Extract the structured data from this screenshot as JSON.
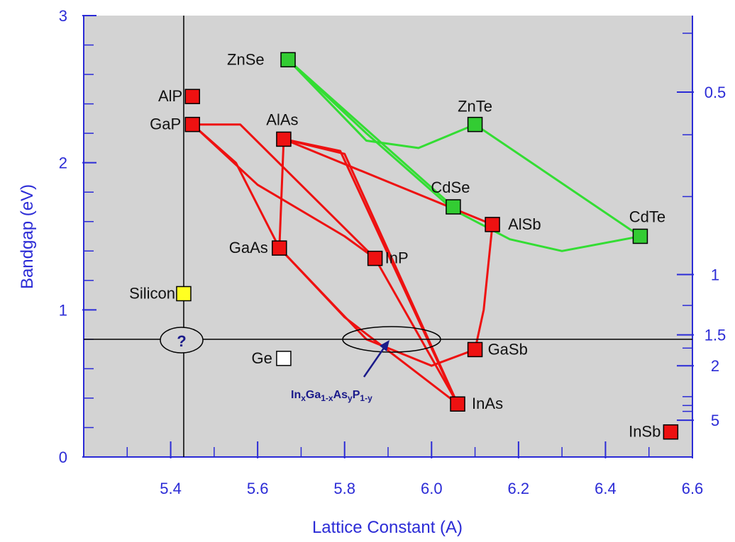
{
  "chart_data": {
    "type": "scatter",
    "title": "",
    "xlabel": "Lattice Constant  (A)",
    "ylabel": "Bandgap  (eV)",
    "xlim": [
      5.2,
      6.6
    ],
    "ylim": [
      0,
      3
    ],
    "x_ticks": [
      "5.4",
      "5.6",
      "5.8",
      "6.0",
      "6.2",
      "6.4",
      "6.6"
    ],
    "x_tick_values": [
      5.4,
      5.6,
      5.8,
      6.0,
      6.2,
      6.4,
      6.6
    ],
    "y_ticks": [
      "0",
      "1",
      "2",
      "3"
    ],
    "y_tick_values": [
      0,
      1,
      2,
      3
    ],
    "right_axis_label_title": "",
    "right_ticks": [
      {
        "label": "0.5",
        "bandgap": 2.48
      },
      {
        "label": "1",
        "bandgap": 1.24
      },
      {
        "label": "1.5",
        "bandgap": 0.83
      },
      {
        "label": "2",
        "bandgap": 0.62
      },
      {
        "label": "5",
        "bandgap": 0.25
      }
    ],
    "right_minor_ticks": [
      2.88,
      2.19,
      1.77,
      1.03,
      0.74,
      0.41,
      0.35,
      0.31
    ],
    "grid": false,
    "reference_lines": {
      "vertical_x": 5.43,
      "horizontal_y": 0.8,
      "color": "#000000"
    },
    "points": [
      {
        "name": "ZnSe",
        "x": 5.67,
        "y": 2.7,
        "color": "#33cc33"
      },
      {
        "name": "ZnTe",
        "x": 6.1,
        "y": 2.26,
        "color": "#33cc33"
      },
      {
        "name": "CdSe",
        "x": 6.05,
        "y": 1.7,
        "color": "#33cc33"
      },
      {
        "name": "CdTe",
        "x": 6.48,
        "y": 1.5,
        "color": "#33cc33"
      },
      {
        "name": "AlP",
        "x": 5.45,
        "y": 2.45,
        "color": "#ee1111"
      },
      {
        "name": "GaP",
        "x": 5.45,
        "y": 2.26,
        "color": "#ee1111"
      },
      {
        "name": "AlAs",
        "x": 5.66,
        "y": 2.16,
        "color": "#ee1111"
      },
      {
        "name": "GaAs",
        "x": 5.65,
        "y": 1.42,
        "color": "#ee1111"
      },
      {
        "name": "InP",
        "x": 5.87,
        "y": 1.35,
        "color": "#ee1111"
      },
      {
        "name": "AlSb",
        "x": 6.14,
        "y": 1.58,
        "color": "#ee1111"
      },
      {
        "name": "GaSb",
        "x": 6.1,
        "y": 0.73,
        "color": "#ee1111"
      },
      {
        "name": "InAs",
        "x": 6.06,
        "y": 0.36,
        "color": "#ee1111"
      },
      {
        "name": "InSb",
        "x": 6.55,
        "y": 0.17,
        "color": "#ee1111"
      },
      {
        "name": "Silicon",
        "x": 5.43,
        "y": 1.11,
        "color": "#ffff22"
      },
      {
        "name": "Ge",
        "x": 5.66,
        "y": 0.67,
        "color": "#ffffff"
      }
    ],
    "curves": [
      {
        "color": "#ee1111",
        "points": [
          [
            5.45,
            2.26
          ],
          [
            5.56,
            2.26
          ],
          [
            5.87,
            1.35
          ]
        ]
      },
      {
        "color": "#ee1111",
        "points": [
          [
            5.45,
            2.26
          ],
          [
            5.55,
            2.0
          ],
          [
            5.65,
            1.42
          ]
        ]
      },
      {
        "color": "#ee1111",
        "points": [
          [
            5.45,
            2.26
          ],
          [
            5.6,
            1.85
          ],
          [
            5.8,
            1.5
          ],
          [
            5.87,
            1.35
          ]
        ]
      },
      {
        "color": "#ee1111",
        "points": [
          [
            5.66,
            2.16
          ],
          [
            5.65,
            1.42
          ]
        ]
      },
      {
        "color": "#ee1111",
        "points": [
          [
            5.66,
            2.16
          ],
          [
            5.8,
            2.06
          ],
          [
            6.06,
            0.36
          ]
        ]
      },
      {
        "color": "#ee1111",
        "points": [
          [
            5.66,
            2.16
          ],
          [
            5.79,
            2.08
          ],
          [
            6.05,
            0.42
          ]
        ]
      },
      {
        "color": "#ee1111",
        "points": [
          [
            5.66,
            2.16
          ],
          [
            6.14,
            1.58
          ]
        ]
      },
      {
        "color": "#ee1111",
        "points": [
          [
            5.87,
            1.35
          ],
          [
            6.06,
            0.36
          ]
        ]
      },
      {
        "color": "#ee1111",
        "points": [
          [
            5.65,
            1.42
          ],
          [
            5.8,
            0.95
          ],
          [
            6.06,
            0.36
          ]
        ]
      },
      {
        "color": "#ee1111",
        "points": [
          [
            5.65,
            1.42
          ],
          [
            5.85,
            0.8
          ],
          [
            6.0,
            0.62
          ],
          [
            6.1,
            0.73
          ]
        ]
      },
      {
        "color": "#ee1111",
        "points": [
          [
            6.14,
            1.58
          ],
          [
            6.12,
            1.0
          ],
          [
            6.1,
            0.73
          ]
        ]
      },
      {
        "color": "#33dd33",
        "points": [
          [
            5.67,
            2.7
          ],
          [
            5.85,
            2.15
          ],
          [
            5.97,
            2.1
          ],
          [
            6.1,
            2.26
          ]
        ]
      },
      {
        "color": "#33dd33",
        "points": [
          [
            5.67,
            2.7
          ],
          [
            6.05,
            1.7
          ]
        ]
      },
      {
        "color": "#33dd33",
        "points": [
          [
            5.67,
            2.7
          ],
          [
            5.85,
            2.2
          ],
          [
            6.05,
            1.68
          ],
          [
            6.18,
            1.48
          ],
          [
            6.3,
            1.4
          ],
          [
            6.48,
            1.5
          ]
        ]
      },
      {
        "color": "#33dd33",
        "points": [
          [
            6.1,
            2.26
          ],
          [
            6.48,
            1.5
          ]
        ]
      }
    ],
    "annotations": {
      "question_mark": "?",
      "alloy_label": {
        "base1": "In",
        "sub1": "x",
        "base2": "Ga",
        "sub2": "1-x",
        "base3": "As",
        "sub3": "y",
        "base4": "P",
        "sub4": "1-y"
      }
    }
  }
}
